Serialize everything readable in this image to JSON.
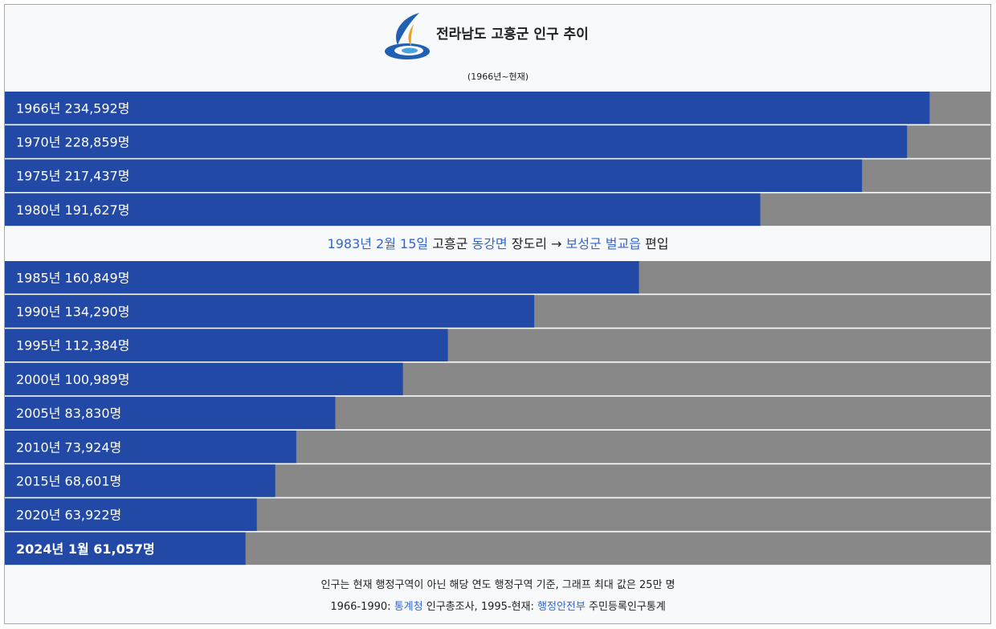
{
  "chart_data": {
    "type": "bar",
    "orientation": "horizontal",
    "title": "전라남도 고흥군 인구 추이",
    "subtitle": "(1966년~현재)",
    "categories": [
      "1966년",
      "1970년",
      "1975년",
      "1980년",
      "1985년",
      "1990년",
      "1995년",
      "2000년",
      "2005년",
      "2010년",
      "2015년",
      "2020년",
      "2024년 1월"
    ],
    "values": [
      234592,
      228859,
      217437,
      191627,
      160849,
      134290,
      112384,
      100989,
      83830,
      73924,
      68601,
      63922,
      61057
    ],
    "value_labels": [
      "234,592명",
      "228,859명",
      "217,437명",
      "191,627명",
      "160,849명",
      "134,290명",
      "112,384명",
      "100,989명",
      "83,830명",
      "73,924명",
      "68,601명",
      "63,922명",
      "61,057명"
    ],
    "color": "#2349a6",
    "background_color": "#888888",
    "xlim": [
      0,
      250000
    ],
    "annotation": [
      {
        "text": "1983년 2월 15일",
        "color": "#3366cc"
      },
      {
        "text": "고흥군",
        "color": "#202122"
      },
      {
        "text": "동강면",
        "color": "#3366cc"
      },
      {
        "text": "장도리",
        "color": "#202122"
      },
      {
        "text": "→",
        "color": "#202122"
      },
      {
        "text": "보성군 벌교읍",
        "color": "#3366cc"
      },
      {
        "text": "편입",
        "color": "#202122"
      }
    ],
    "notes": [
      [
        {
          "text": "인구는 현재 행정구역이 아닌 해당 연도 행정구역 기준, 그래프 최대 값은 25만 명",
          "color": "#202122"
        }
      ],
      [
        {
          "text": "1966-1990:",
          "color": "#202122"
        },
        {
          "text": "통계청",
          "color": "#3366cc"
        },
        {
          "text": "인구총조사, 1995-현재:",
          "color": "#202122"
        },
        {
          "text": "행정안전부",
          "color": "#3366cc"
        },
        {
          "text": "주민등록인구통계",
          "color": "#202122"
        }
      ]
    ]
  }
}
